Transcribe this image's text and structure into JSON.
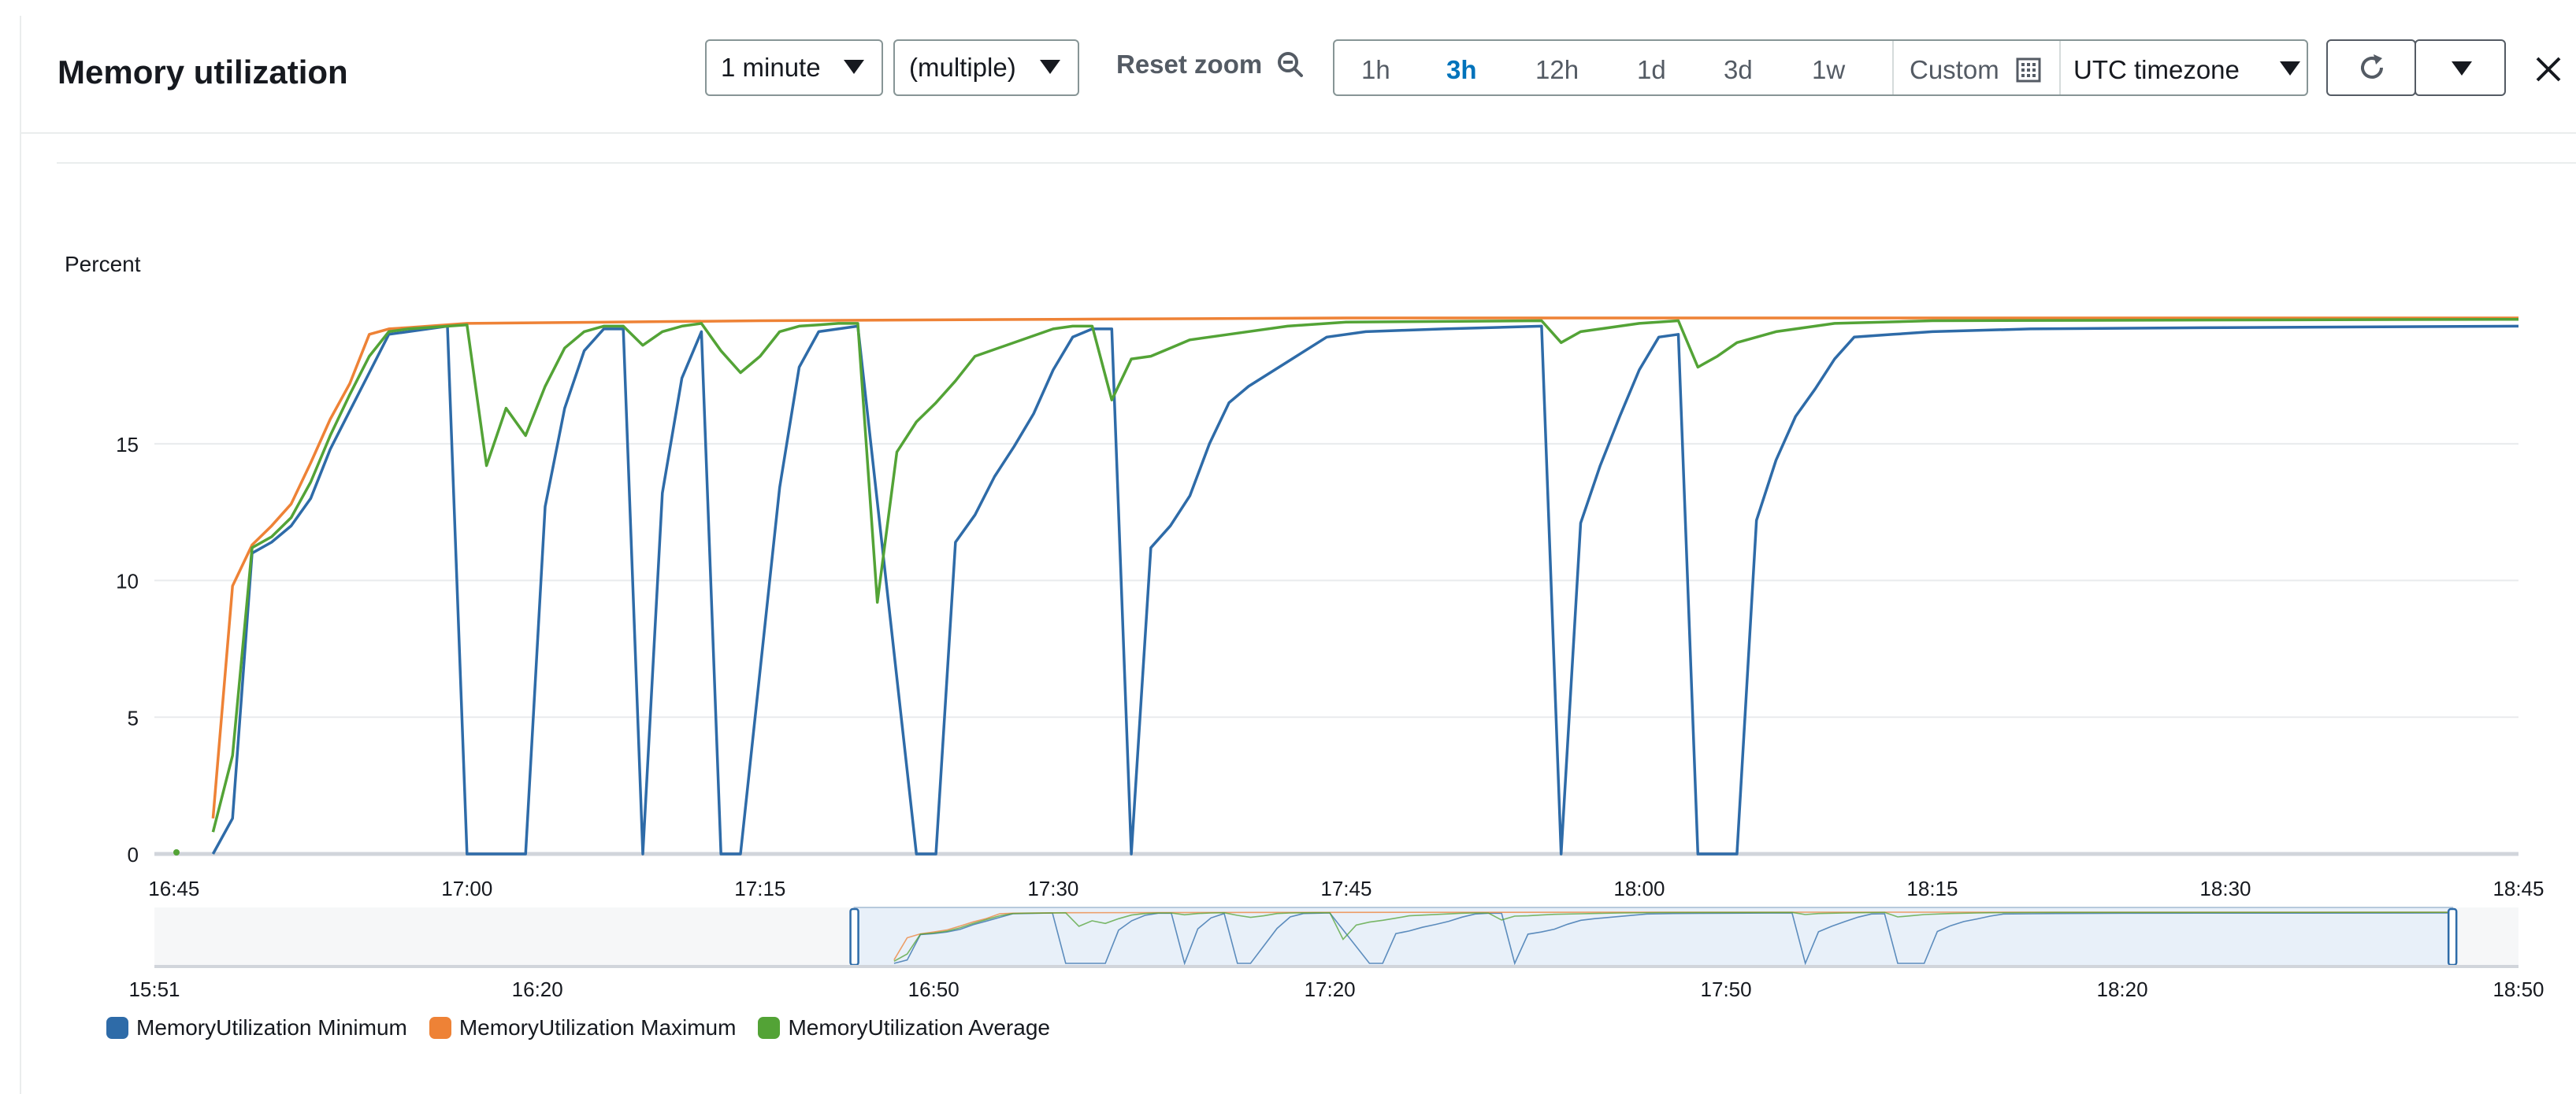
{
  "header": {
    "title": "Memory utilization",
    "period": "1 minute",
    "stat": "(multiple)",
    "reset_zoom": "Reset zoom",
    "ranges": [
      "1h",
      "3h",
      "12h",
      "1d",
      "3d",
      "1w"
    ],
    "active_range": "3h",
    "custom": "Custom",
    "timezone": "UTC timezone"
  },
  "colors": {
    "min": "#2e6ba8",
    "max": "#ee8236",
    "avg": "#53a336",
    "grid": "#e9ebed",
    "axis": "#d1d5db"
  },
  "chart_data": {
    "type": "line",
    "ylabel": "Percent",
    "ylim": [
      0,
      19.6
    ],
    "yticks": [
      0,
      5,
      10,
      15
    ],
    "xlim": [
      "16:44",
      "18:45"
    ],
    "xticks": [
      "16:45",
      "17:00",
      "17:15",
      "17:30",
      "17:45",
      "18:00",
      "18:15",
      "18:30",
      "18:45"
    ],
    "series": [
      {
        "name": "MemoryUtilization Minimum",
        "color_key": "min",
        "x": [
          "16:47",
          "16:48",
          "16:49",
          "16:50",
          "16:51",
          "16:52",
          "16:53",
          "16:54",
          "16:55",
          "16:56",
          "16:58",
          "16:59",
          "17:00",
          "17:03",
          "17:04",
          "17:05",
          "17:06",
          "17:07",
          "17:08",
          "17:09",
          "17:10",
          "17:11",
          "17:12",
          "17:13",
          "17:14",
          "17:16",
          "17:17",
          "17:18",
          "17:19",
          "17:20",
          "17:23",
          "17:24",
          "17:25",
          "17:26",
          "17:27",
          "17:28",
          "17:29",
          "17:30",
          "17:31",
          "17:32",
          "17:33",
          "17:34",
          "17:35",
          "17:36",
          "17:37",
          "17:38",
          "17:39",
          "17:40",
          "17:42",
          "17:44",
          "17:46",
          "17:48",
          "17:50",
          "17:55",
          "17:56",
          "17:57",
          "17:58",
          "17:59",
          "18:00",
          "18:01",
          "18:02",
          "18:03",
          "18:05",
          "18:06",
          "18:07",
          "18:08",
          "18:09",
          "18:10",
          "18:11",
          "18:13",
          "18:15",
          "18:20",
          "18:30",
          "18:45"
        ],
        "y": [
          0,
          1.3,
          11.0,
          11.4,
          12.0,
          13.0,
          14.8,
          16.2,
          17.6,
          19.0,
          19.2,
          19.3,
          0,
          0,
          12.7,
          16.3,
          18.4,
          19.2,
          19.2,
          0,
          13.2,
          17.4,
          19.1,
          0,
          0,
          13.4,
          17.8,
          19.1,
          19.2,
          19.3,
          0,
          0,
          11.4,
          12.4,
          13.8,
          14.9,
          16.1,
          17.7,
          18.9,
          19.2,
          19.2,
          0,
          11.2,
          12.0,
          13.1,
          15.0,
          16.5,
          17.1,
          18.0,
          18.9,
          19.1,
          19.15,
          19.2,
          19.3,
          0,
          12.1,
          14.2,
          16.0,
          17.7,
          18.9,
          19.0,
          0,
          0,
          12.2,
          14.4,
          16.0,
          17.0,
          18.1,
          18.9,
          19.0,
          19.1,
          19.2,
          19.25,
          19.3
        ]
      },
      {
        "name": "MemoryUtilization Maximum",
        "color_key": "max",
        "x": [
          "16:47",
          "16:48",
          "16:49",
          "16:50",
          "16:51",
          "16:52",
          "16:53",
          "16:54",
          "16:55",
          "16:56",
          "16:57",
          "17:00",
          "17:15",
          "17:30",
          "17:45",
          "18:00",
          "18:15",
          "18:30",
          "18:45"
        ],
        "y": [
          1.3,
          9.8,
          11.3,
          12.0,
          12.8,
          14.3,
          15.9,
          17.2,
          19.0,
          19.2,
          19.25,
          19.4,
          19.5,
          19.55,
          19.6,
          19.6,
          19.6,
          19.6,
          19.6
        ]
      },
      {
        "name": "MemoryUtilization Average",
        "color_key": "avg",
        "x": [
          "16:47",
          "16:48",
          "16:49",
          "16:50",
          "16:51",
          "16:52",
          "16:53",
          "16:54",
          "16:55",
          "16:56",
          "16:57",
          "17:00",
          "17:01",
          "17:02",
          "17:03",
          "17:04",
          "17:05",
          "17:06",
          "17:07",
          "17:08",
          "17:09",
          "17:10",
          "17:11",
          "17:12",
          "17:13",
          "17:14",
          "17:15",
          "17:16",
          "17:17",
          "17:18",
          "17:19",
          "17:20",
          "17:21",
          "17:22",
          "17:23",
          "17:24",
          "17:25",
          "17:26",
          "17:30",
          "17:31",
          "17:32",
          "17:33",
          "17:34",
          "17:35",
          "17:36",
          "17:37",
          "17:39",
          "17:42",
          "17:45",
          "17:55",
          "17:56",
          "17:57",
          "17:58",
          "17:59",
          "18:00",
          "18:02",
          "18:03",
          "18:04",
          "18:05",
          "18:07",
          "18:09",
          "18:10",
          "18:15",
          "18:45"
        ],
        "y": [
          0.8,
          3.6,
          11.2,
          11.6,
          12.3,
          13.6,
          15.3,
          16.8,
          18.2,
          19.1,
          19.2,
          19.35,
          14.2,
          16.3,
          15.3,
          17.1,
          18.5,
          19.1,
          19.3,
          19.3,
          18.6,
          19.1,
          19.3,
          19.4,
          18.4,
          17.6,
          18.2,
          19.1,
          19.3,
          19.35,
          19.4,
          19.4,
          9.2,
          14.7,
          15.8,
          16.5,
          17.3,
          18.2,
          19.2,
          19.3,
          19.3,
          16.6,
          18.1,
          18.2,
          18.5,
          18.8,
          19.0,
          19.3,
          19.45,
          19.5,
          18.7,
          19.1,
          19.2,
          19.3,
          19.4,
          19.5,
          17.8,
          18.2,
          18.7,
          19.1,
          19.3,
          19.4,
          19.5,
          19.55
        ]
      }
    ],
    "navigator": {
      "xticks": [
        "15:51",
        "16:20",
        "16:50",
        "17:20",
        "17:50",
        "18:20",
        "18:50"
      ],
      "xlim": [
        "15:51",
        "18:50"
      ],
      "window": [
        "16:44",
        "18:45"
      ]
    }
  }
}
